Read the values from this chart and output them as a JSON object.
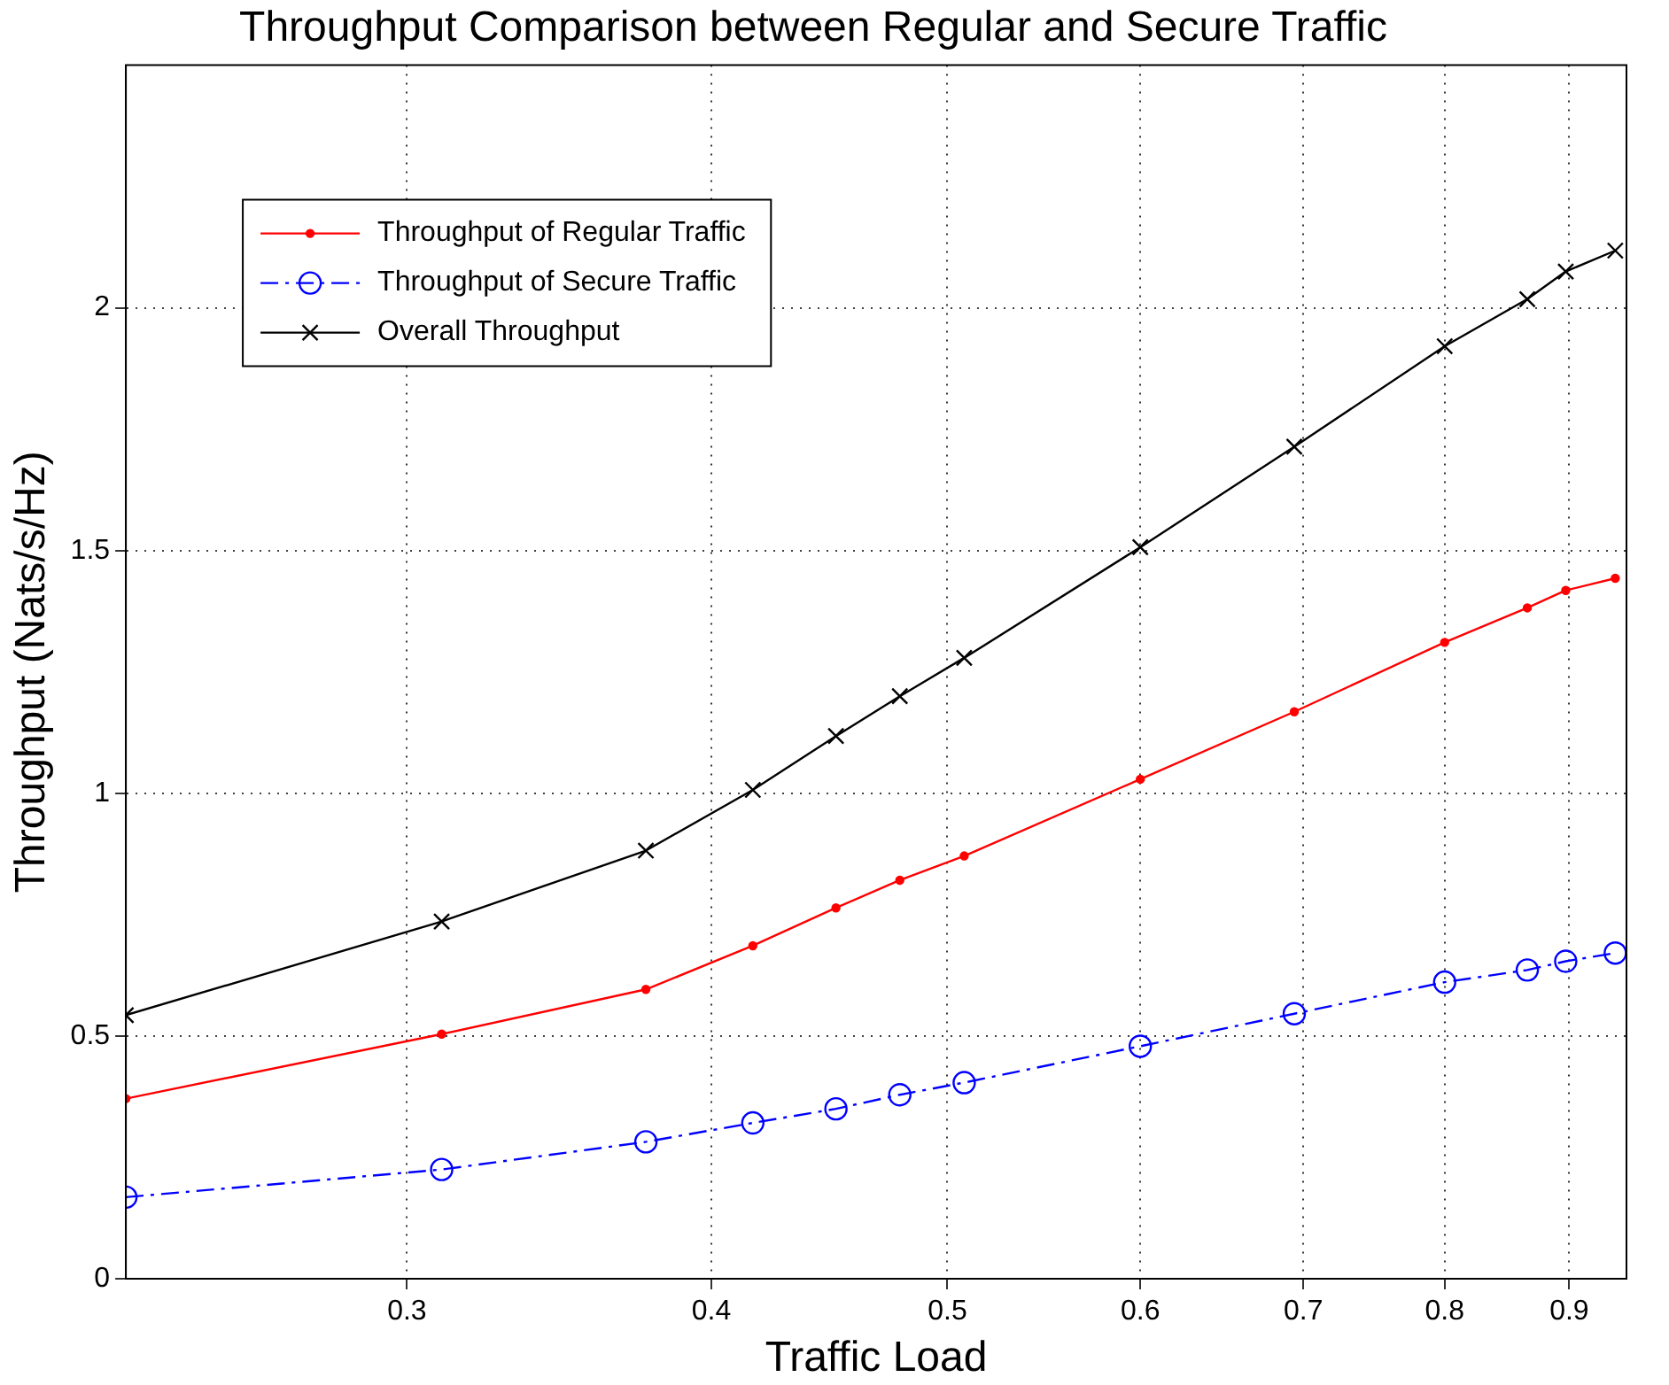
{
  "chart_data": {
    "type": "line",
    "title": "Throughput Comparison between Regular and Secure Traffic",
    "xlabel": "Traffic Load",
    "ylabel": "Throughput (Nats/s/Hz)",
    "log": "x",
    "xlim": [
      0.23,
      0.95
    ],
    "xticks": [
      0.3,
      0.4,
      0.5,
      0.6,
      0.7,
      0.8,
      0.9
    ],
    "ylim": [
      0,
      2.5
    ],
    "yticks": [
      0,
      0.5,
      1,
      1.5,
      2
    ],
    "grid": true,
    "legend": "top left",
    "x": [
      0.23,
      0.31,
      0.376,
      0.416,
      0.45,
      0.478,
      0.508,
      0.6,
      0.694,
      0.8,
      0.865,
      0.897,
      0.94
    ],
    "series": [
      {
        "name": "Throughput of Regular Traffic",
        "color": "#ff0000",
        "marker": "circle",
        "line_style": "solid",
        "values": [
          0.371,
          0.504,
          0.596,
          0.686,
          0.764,
          0.821,
          0.871,
          1.029,
          1.168,
          1.311,
          1.382,
          1.418,
          1.443
        ]
      },
      {
        "name": "Throughput of Secure Traffic",
        "color": "#0000ff",
        "marker": "circle",
        "line_style": "dashed",
        "values": [
          0.168,
          0.225,
          0.282,
          0.321,
          0.35,
          0.379,
          0.404,
          0.479,
          0.546,
          0.611,
          0.636,
          0.654,
          0.671
        ]
      },
      {
        "name": "Overall Throughput",
        "color": "#000000",
        "marker": "cross",
        "line_style": "solid",
        "values": [
          0.543,
          0.736,
          0.882,
          1.007,
          1.118,
          1.2,
          1.279,
          1.507,
          1.714,
          1.921,
          2.018,
          2.075,
          2.118
        ]
      }
    ]
  }
}
